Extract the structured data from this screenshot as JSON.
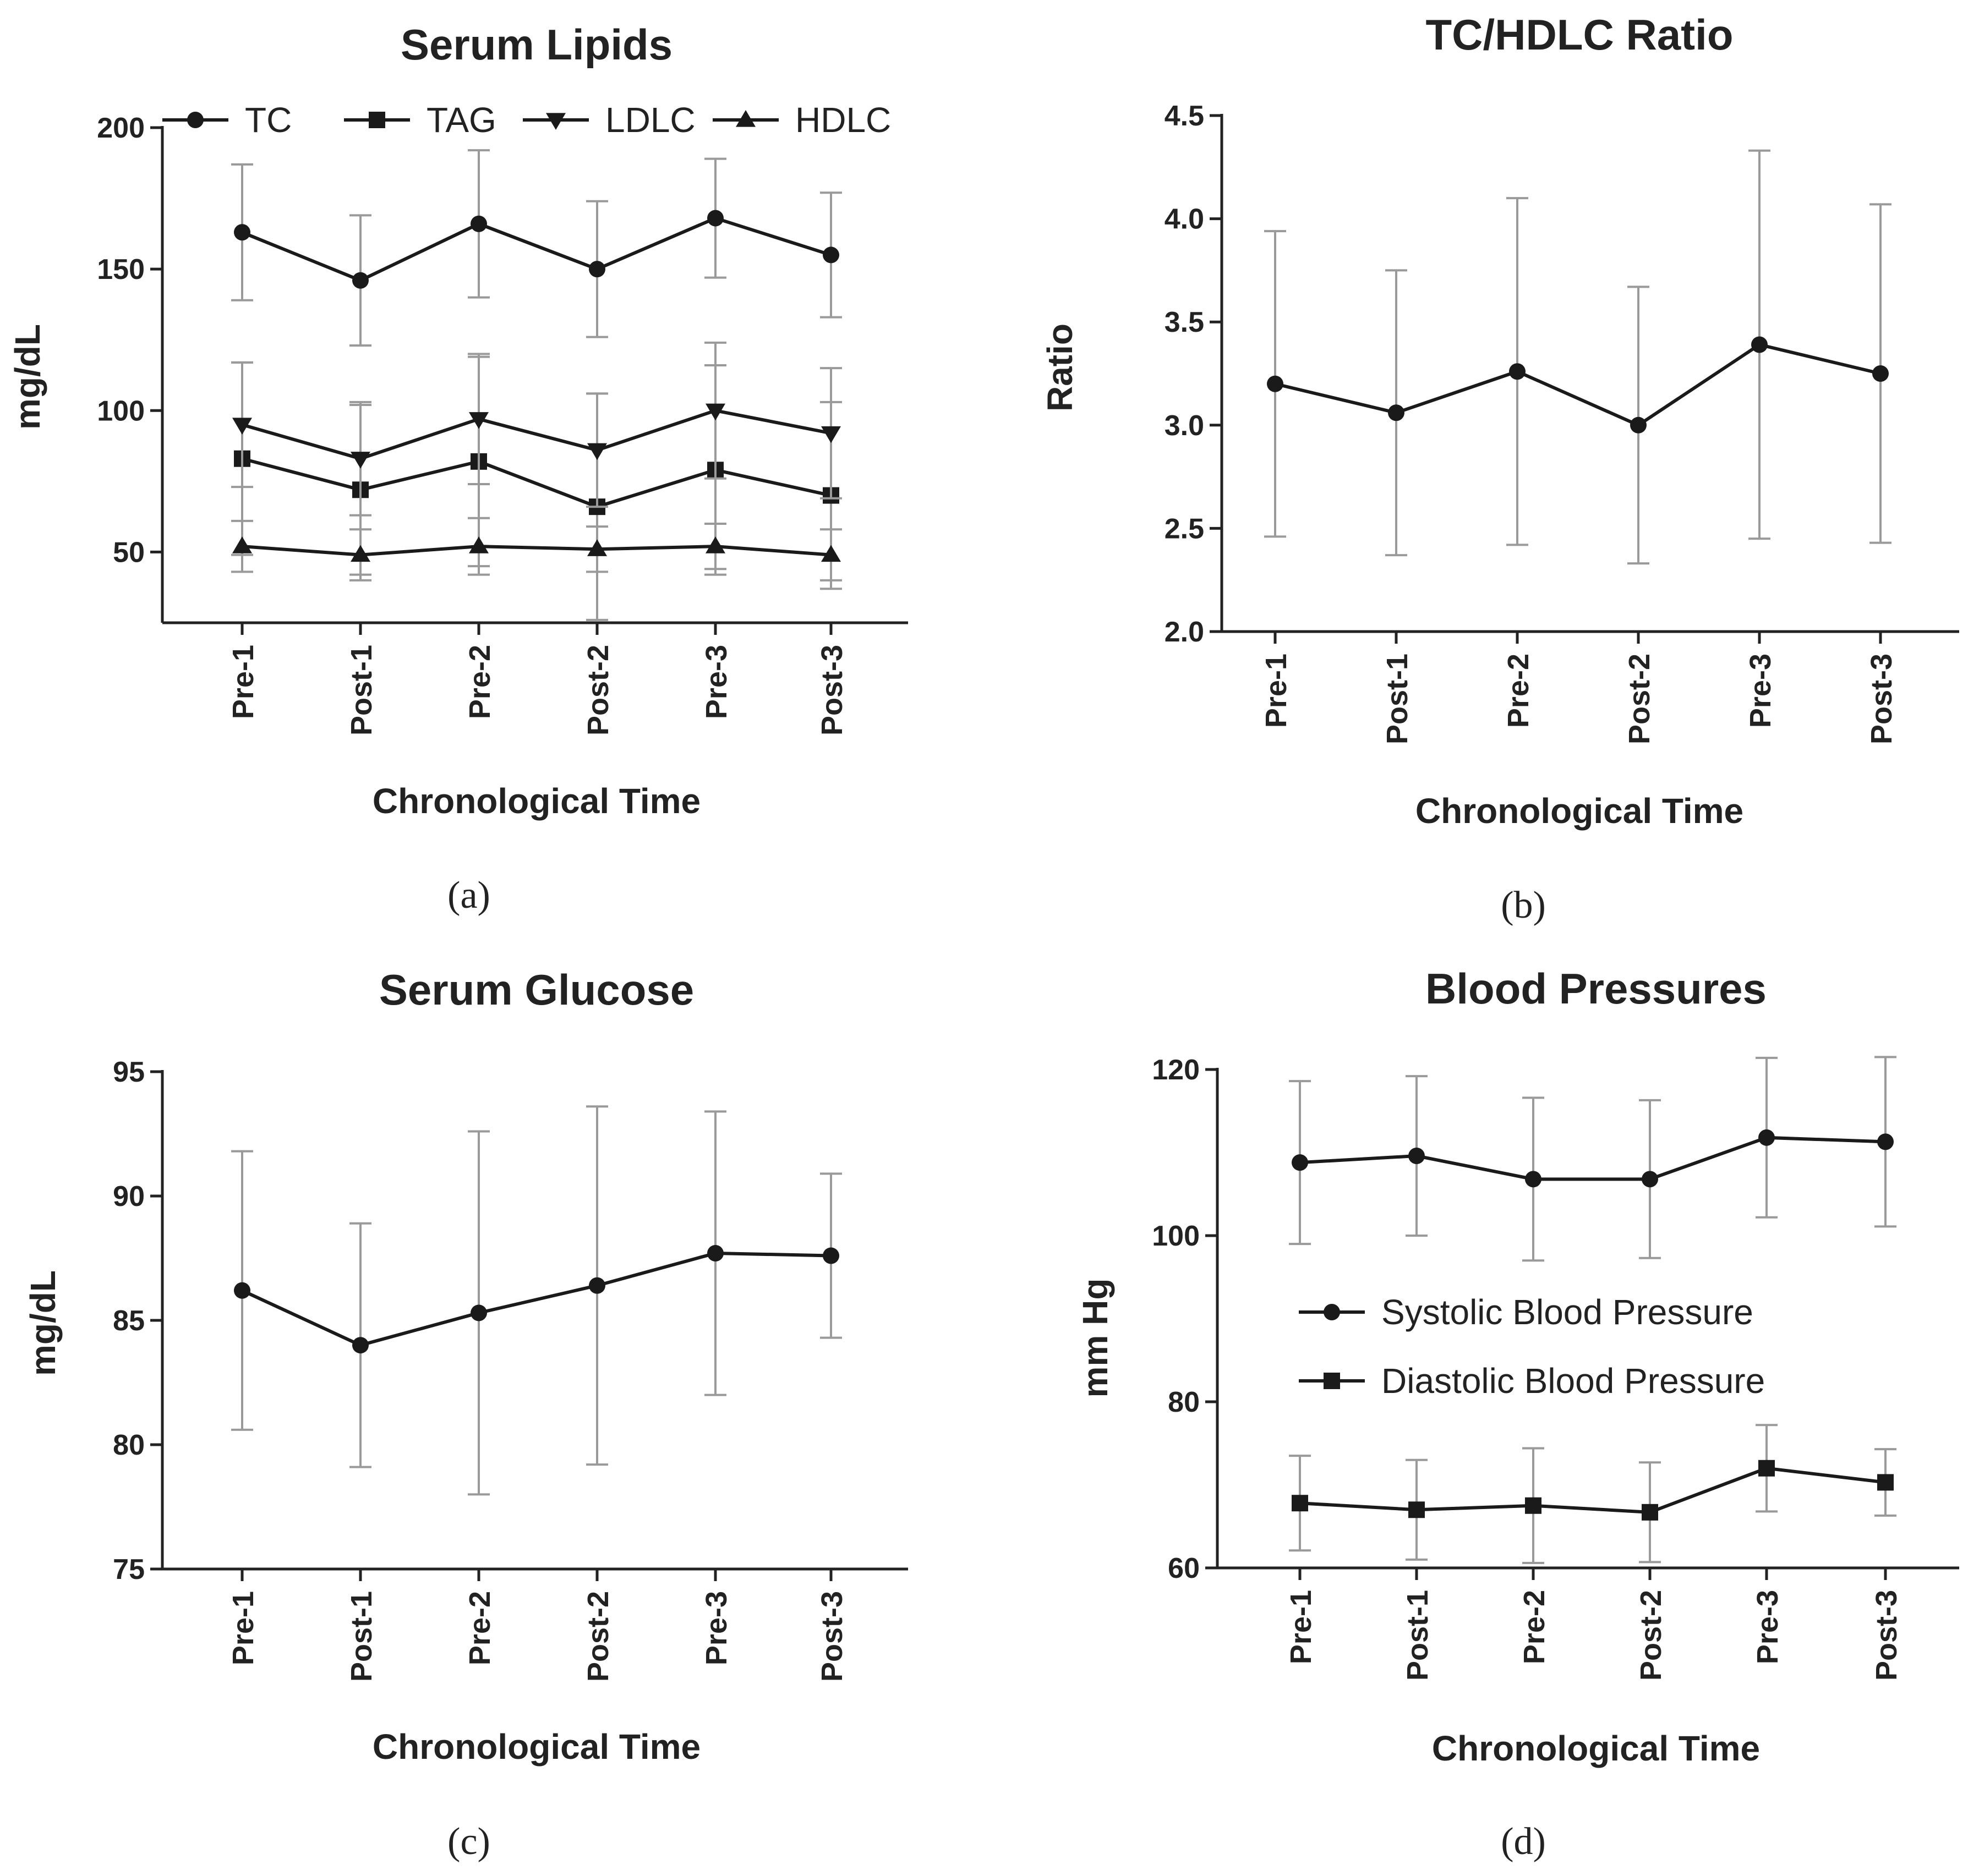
{
  "chart_data": [
    {
      "id": "a",
      "panel_label": "(a)",
      "type": "line",
      "title": "Serum Lipids",
      "xlabel": "Chronological Time",
      "ylabel": "mg/dL",
      "ylim": [
        25,
        200
      ],
      "yticks": [
        "50",
        "100",
        "150",
        "200"
      ],
      "categories": [
        "Pre-1",
        "Post-1",
        "Pre-2",
        "Post-2",
        "Pre-3",
        "Post-3"
      ],
      "legend_position": "top",
      "series": [
        {
          "name": "TC",
          "marker": "circle",
          "values": [
            163,
            146,
            166,
            150,
            168,
            155
          ],
          "errors": [
            24,
            23,
            26,
            24,
            21,
            22
          ]
        },
        {
          "name": "TAG",
          "marker": "square",
          "values": [
            83,
            72,
            82,
            66,
            79,
            70
          ],
          "errors": [
            34,
            30,
            37,
            40,
            37,
            33
          ]
        },
        {
          "name": "LDLC",
          "marker": "triangle-down",
          "values": [
            95,
            83,
            97,
            86,
            100,
            92
          ],
          "errors": [
            22,
            20,
            23,
            20,
            24,
            23
          ]
        },
        {
          "name": "HDLC",
          "marker": "triangle-up",
          "values": [
            52,
            49,
            52,
            51,
            52,
            49
          ],
          "errors": [
            9,
            9,
            10,
            8,
            8,
            9
          ]
        }
      ]
    },
    {
      "id": "b",
      "panel_label": "(b)",
      "type": "line",
      "title": "TC/HDLC Ratio",
      "xlabel": "Chronological Time",
      "ylabel": "Ratio",
      "ylim": [
        2.0,
        4.5
      ],
      "yticks": [
        "2.0",
        "2.5",
        "3.0",
        "3.5",
        "4.0",
        "4.5"
      ],
      "categories": [
        "Pre-1",
        "Post-1",
        "Pre-2",
        "Post-2",
        "Pre-3",
        "Post-3"
      ],
      "series": [
        {
          "name": "TC/HDLC",
          "marker": "circle",
          "values": [
            3.2,
            3.06,
            3.26,
            3.0,
            3.39,
            3.25
          ],
          "errors": [
            0.74,
            0.69,
            0.84,
            0.67,
            0.94,
            0.82
          ]
        }
      ]
    },
    {
      "id": "c",
      "panel_label": "(c)",
      "type": "line",
      "title": "Serum Glucose",
      "xlabel": "Chronological Time",
      "ylabel": "mg/dL",
      "ylim": [
        75,
        95
      ],
      "yticks": [
        "75",
        "80",
        "85",
        "90",
        "95"
      ],
      "categories": [
        "Pre-1",
        "Post-1",
        "Pre-2",
        "Post-2",
        "Pre-3",
        "Post-3"
      ],
      "series": [
        {
          "name": "Glucose",
          "marker": "circle",
          "values": [
            86.2,
            84.0,
            85.3,
            86.4,
            87.7,
            87.6
          ],
          "errors": [
            5.6,
            4.9,
            7.3,
            7.2,
            5.7,
            3.3
          ]
        }
      ]
    },
    {
      "id": "d",
      "panel_label": "(d)",
      "type": "line",
      "title": "Blood Pressures",
      "xlabel": "Chronological Time",
      "ylabel": "mm Hg",
      "ylim": [
        60,
        120
      ],
      "yticks": [
        "60",
        "80",
        "100",
        "120"
      ],
      "categories": [
        "Pre-1",
        "Post-1",
        "Pre-2",
        "Post-2",
        "Pre-3",
        "Post-3"
      ],
      "legend_position": "center-right",
      "series": [
        {
          "name": "Systolic Blood Pressure",
          "marker": "circle",
          "values": [
            108.8,
            109.6,
            106.8,
            106.8,
            111.8,
            111.3
          ],
          "errors": [
            9.8,
            9.6,
            9.8,
            9.5,
            9.6,
            10.2
          ]
        },
        {
          "name": "Diastolic Blood Pressure",
          "marker": "square",
          "values": [
            67.8,
            67.0,
            67.5,
            66.7,
            72.0,
            70.3
          ],
          "errors": [
            5.7,
            6.0,
            6.9,
            6.0,
            5.2,
            4.0
          ]
        }
      ]
    }
  ]
}
